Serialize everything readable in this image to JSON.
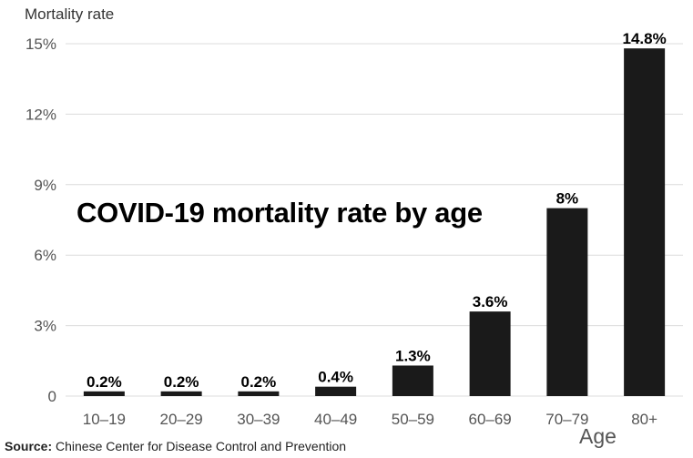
{
  "chart_data": {
    "type": "bar",
    "categories": [
      "10–19",
      "20–29",
      "30–39",
      "40–49",
      "50–59",
      "60–69",
      "70–79",
      "80+"
    ],
    "values": [
      0.2,
      0.2,
      0.2,
      0.4,
      1.3,
      3.6,
      8,
      14.8
    ],
    "data_labels": [
      "0.2%",
      "0.2%",
      "0.2%",
      "0.4%",
      "1.3%",
      "3.6%",
      "8%",
      "14.8%"
    ],
    "title": "COVID-19 mortality rate by age",
    "xlabel": "Age",
    "ylabel": "Mortality rate",
    "ylim": [
      0,
      15
    ],
    "yticks": [
      0,
      3,
      6,
      9,
      12,
      15
    ],
    "ytick_labels": [
      "0",
      "3%",
      "6%",
      "9%",
      "12%",
      "15%"
    ],
    "grid": true,
    "bar_color": "#1a1a1a",
    "grid_color": "#dcdcdc"
  },
  "source": {
    "label": "Source:",
    "text": "Chinese Center for Disease Control and Prevention"
  }
}
